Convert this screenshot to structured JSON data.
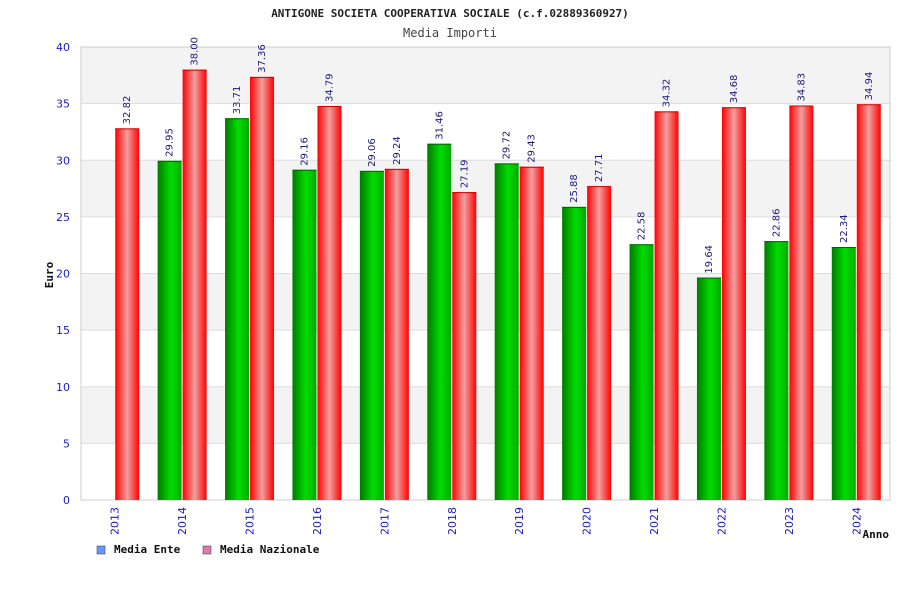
{
  "chart_data": {
    "type": "bar",
    "title": "ANTIGONE SOCIETA COOPERATIVA SOCIALE (c.f.02889360927)",
    "subtitle": "Media Importi",
    "xlabel": "Anno",
    "ylabel": "Euro",
    "ylim": [
      0,
      40
    ],
    "yticks": [
      0,
      5,
      10,
      15,
      20,
      25,
      30,
      35,
      40
    ],
    "grid": true,
    "legend_position": "bottom-left",
    "categories": [
      "2013",
      "2014",
      "2015",
      "2016",
      "2017",
      "2018",
      "2019",
      "2020",
      "2021",
      "2022",
      "2023",
      "2024"
    ],
    "series": [
      {
        "name": "Media Ente",
        "color": "#00cc00",
        "legend_color": "#6699ff",
        "values": [
          null,
          29.95,
          33.71,
          29.16,
          29.06,
          31.46,
          29.72,
          25.88,
          22.58,
          19.64,
          22.86,
          22.34
        ],
        "labels": [
          "",
          "29.95",
          "33.71",
          "29.16",
          "29.06",
          "31.46",
          "29.72",
          "25.88",
          "22.58",
          "19.64",
          "22.86",
          "22.34"
        ]
      },
      {
        "name": "Media Nazionale",
        "color": "#ff1a1a",
        "legend_color": "#e07ab0",
        "values": [
          32.82,
          38.0,
          37.36,
          34.79,
          29.24,
          27.19,
          29.43,
          27.71,
          34.32,
          34.68,
          34.83,
          34.94
        ],
        "labels": [
          "32.82",
          "38.00",
          "37.36",
          "34.79",
          "29.24",
          "27.19",
          "29.43",
          "27.71",
          "34.32",
          "34.68",
          "34.83",
          "34.94"
        ]
      }
    ]
  }
}
